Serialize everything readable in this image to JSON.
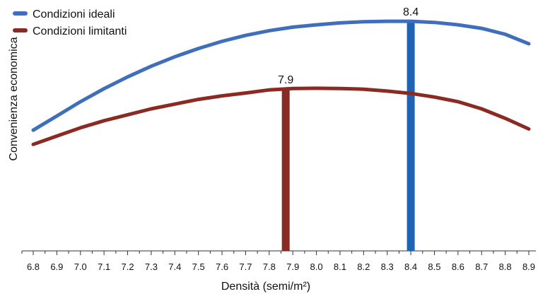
{
  "chart_data": {
    "type": "line",
    "title": "",
    "xlabel": "Densità (semi/m²)",
    "ylabel": "Convenienza economica",
    "x_ticks": [
      6.8,
      6.9,
      7.0,
      7.1,
      7.2,
      7.3,
      7.4,
      7.5,
      7.6,
      7.7,
      7.8,
      7.9,
      8.0,
      8.1,
      8.2,
      8.3,
      8.4,
      8.5,
      8.6,
      8.7,
      8.8,
      8.9
    ],
    "x_tick_labels": [
      "6.8",
      "6.9",
      "7.0",
      "7.1",
      "7.2",
      "7.3",
      "7.4",
      "7.5",
      "7.6",
      "7.7",
      "7.8",
      "7.9",
      "8.0",
      "8.1",
      "8.2",
      "8.3",
      "8.4",
      "8.5",
      "8.6",
      "8.7",
      "8.8",
      "8.9"
    ],
    "xlim": [
      6.75,
      8.93
    ],
    "ylim": [
      0,
      100
    ],
    "legend_position": "top-left",
    "grid": false,
    "series": [
      {
        "name": "Condizioni ideali",
        "color": "#3f6fba",
        "x": [
          6.8,
          6.9,
          7.0,
          7.1,
          7.2,
          7.3,
          7.4,
          7.5,
          7.6,
          7.7,
          7.8,
          7.9,
          8.0,
          8.1,
          8.2,
          8.3,
          8.4,
          8.5,
          8.6,
          8.7,
          8.8,
          8.9
        ],
        "y": [
          51,
          57,
          63,
          68.5,
          73.5,
          78,
          82,
          85.5,
          88.5,
          91,
          93,
          94.5,
          95.5,
          96.3,
          96.8,
          97,
          97,
          96.5,
          95.5,
          94,
          91.5,
          87.5
        ]
      },
      {
        "name": "Condizioni limitanti",
        "color": "#8b2a22",
        "x": [
          6.8,
          6.9,
          7.0,
          7.1,
          7.2,
          7.3,
          7.4,
          7.5,
          7.6,
          7.7,
          7.8,
          7.9,
          8.0,
          8.1,
          8.2,
          8.3,
          8.4,
          8.5,
          8.6,
          8.7,
          8.8,
          8.9
        ],
        "y": [
          45,
          48.5,
          52,
          55,
          57.5,
          60,
          62,
          64,
          65.5,
          66.7,
          68,
          68.6,
          68.7,
          68.6,
          68.3,
          67.5,
          66.5,
          65,
          63,
          60,
          56,
          51.5
        ]
      }
    ],
    "optima": [
      {
        "series": "Condizioni ideali",
        "x": 8.4,
        "label": "8.4",
        "color": "#1f63b4"
      },
      {
        "series": "Condizioni limitanti",
        "x": 7.87,
        "label": "7.9",
        "color": "#8b2a22"
      }
    ]
  }
}
